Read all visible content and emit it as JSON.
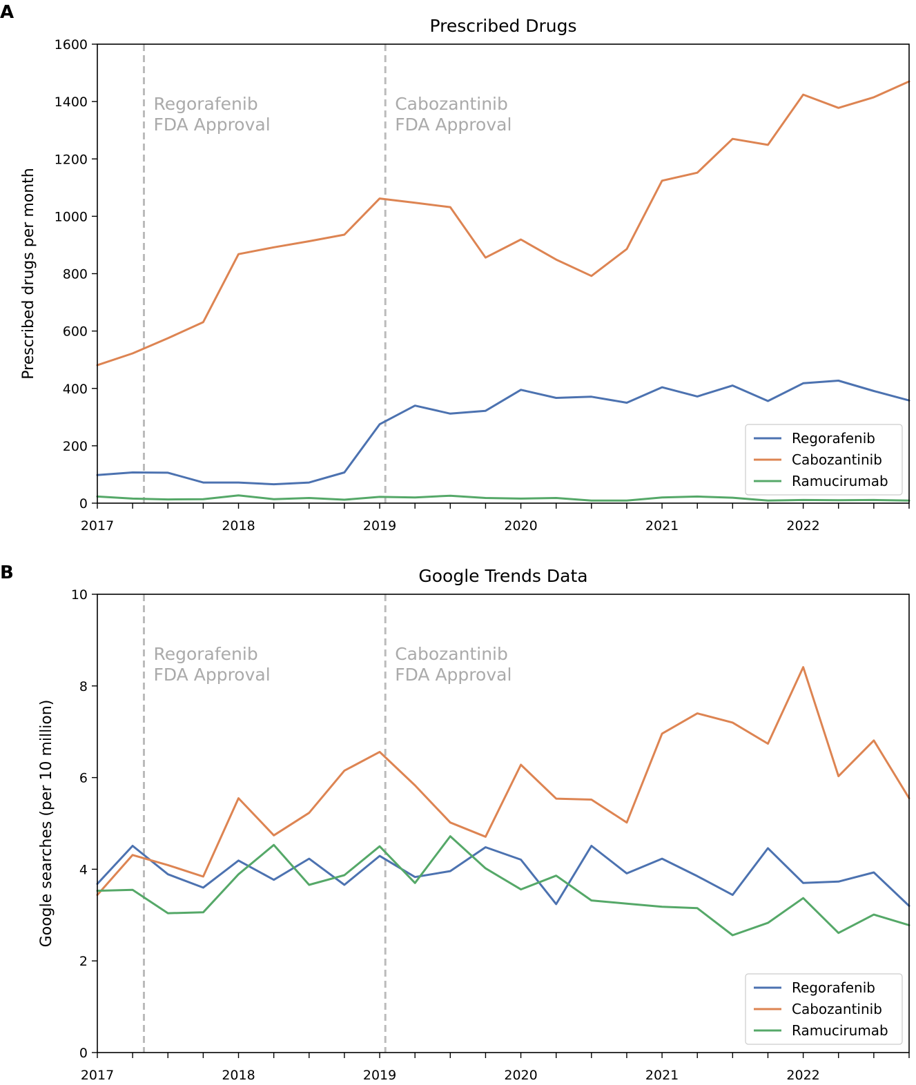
{
  "colors": {
    "Regorafenib": "#4c72b0",
    "Cabozantinib": "#dd8452",
    "Ramucirumab": "#55a868",
    "vline": "#bbbbbb",
    "annotation": "#aaaaaa",
    "legend_border": "#cccccc"
  },
  "chart_data": [
    {
      "panel_label": "A",
      "type": "line",
      "title": "Prescribed Drugs",
      "xlabel": "",
      "ylabel": "Prescribed drugs per month",
      "xlim": [
        2017.0,
        2022.75
      ],
      "ylim": [
        0,
        1600
      ],
      "yticks": [
        0,
        200,
        400,
        600,
        800,
        1000,
        1200,
        1400,
        1600
      ],
      "xticks": [
        2017,
        2018,
        2019,
        2020,
        2021,
        2022
      ],
      "grid": false,
      "legend_position": "bottom-right",
      "annotations": [
        {
          "x": 2017.33,
          "lines": [
            "Regorafenib",
            "FDA Approval"
          ]
        },
        {
          "x": 2019.04,
          "lines": [
            "Cabozantinib",
            "FDA Approval"
          ]
        }
      ],
      "x": [
        2017.0,
        2017.25,
        2017.5,
        2017.75,
        2018.0,
        2018.25,
        2018.5,
        2018.75,
        2019.0,
        2019.25,
        2019.5,
        2019.75,
        2020.0,
        2020.25,
        2020.5,
        2020.75,
        2021.0,
        2021.25,
        2021.5,
        2021.75,
        2022.0,
        2022.25,
        2022.5,
        2022.75
      ],
      "series": [
        {
          "name": "Regorafenib",
          "values": [
            98,
            107,
            106,
            72,
            72,
            66,
            72,
            107,
            275,
            340,
            312,
            322,
            395,
            367,
            371,
            350,
            404,
            372,
            410,
            356,
            418,
            427,
            391,
            358
          ]
        },
        {
          "name": "Cabozantinib",
          "values": [
            481,
            522,
            575,
            631,
            868,
            892,
            913,
            936,
            1062,
            1047,
            1032,
            856,
            919,
            849,
            792,
            886,
            1124,
            1152,
            1270,
            1249,
            1424,
            1378,
            1415,
            1470
          ]
        },
        {
          "name": "Ramucirumab",
          "values": [
            23,
            16,
            13,
            14,
            27,
            14,
            18,
            12,
            22,
            20,
            26,
            18,
            16,
            18,
            9,
            9,
            20,
            23,
            19,
            9,
            11,
            10,
            11,
            9
          ]
        }
      ]
    },
    {
      "panel_label": "B",
      "type": "line",
      "title": "Google Trends Data",
      "xlabel": "",
      "ylabel": "Google searches (per 10 million)",
      "xlim": [
        2017.0,
        2022.75
      ],
      "ylim": [
        0,
        10
      ],
      "yticks": [
        0,
        2,
        4,
        6,
        8,
        10
      ],
      "xticks": [
        2017,
        2018,
        2019,
        2020,
        2021,
        2022
      ],
      "grid": false,
      "legend_position": "bottom-right",
      "annotations": [
        {
          "x": 2017.33,
          "lines": [
            "Regorafenib",
            "FDA Approval"
          ]
        },
        {
          "x": 2019.04,
          "lines": [
            "Cabozantinib",
            "FDA Approval"
          ]
        }
      ],
      "x": [
        2017.0,
        2017.25,
        2017.5,
        2017.75,
        2018.0,
        2018.25,
        2018.5,
        2018.75,
        2019.0,
        2019.25,
        2019.5,
        2019.75,
        2020.0,
        2020.25,
        2020.5,
        2020.75,
        2021.0,
        2021.25,
        2021.5,
        2021.75,
        2022.0,
        2022.25,
        2022.5,
        2022.75
      ],
      "series": [
        {
          "name": "Regorafenib",
          "values": [
            3.68,
            4.51,
            3.89,
            3.6,
            4.19,
            3.77,
            4.23,
            3.66,
            4.29,
            3.83,
            3.96,
            4.48,
            4.21,
            3.24,
            4.51,
            3.91,
            4.23,
            3.85,
            3.44,
            4.46,
            3.7,
            3.73,
            3.93,
            3.2
          ]
        },
        {
          "name": "Cabozantinib",
          "values": [
            3.44,
            4.31,
            4.09,
            3.84,
            5.55,
            4.74,
            5.23,
            6.15,
            6.56,
            5.83,
            5.02,
            4.71,
            6.28,
            5.54,
            5.52,
            5.02,
            6.96,
            7.4,
            7.2,
            6.74,
            8.41,
            6.03,
            6.81,
            5.55
          ]
        },
        {
          "name": "Ramucirumab",
          "values": [
            3.53,
            3.55,
            3.04,
            3.06,
            3.89,
            4.53,
            3.66,
            3.87,
            4.5,
            3.7,
            4.72,
            4.02,
            3.56,
            3.86,
            3.32,
            3.25,
            3.18,
            3.15,
            2.56,
            2.83,
            3.37,
            2.61,
            3.01,
            2.78
          ]
        }
      ]
    }
  ]
}
